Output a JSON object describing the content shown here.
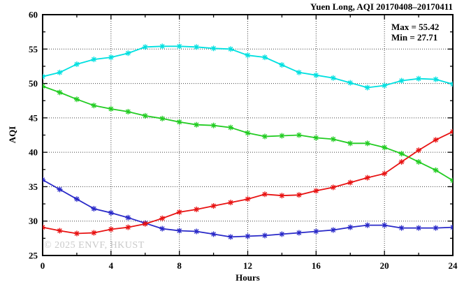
{
  "title": "Yuen Long, AQI 20170408–20170411",
  "legend": {
    "max_label": "Max = 55.42",
    "min_label": "Min = 27.71"
  },
  "watermark": "© 2025 ENVF, HKUST",
  "axes": {
    "x_title": "Hours",
    "y_title": "AQI"
  },
  "colors": {
    "frame": "#000000",
    "grid": "#404040",
    "watermark": "#c9c9c9",
    "series_cyan": "#00e0e0",
    "series_green": "#22cc22",
    "series_blue": "#2929c8",
    "series_red": "#e81212"
  },
  "chart_data": {
    "type": "line",
    "title": "Yuen Long, AQI 20170408–20170411",
    "xlabel": "Hours",
    "ylabel": "AQI",
    "xlim": [
      0,
      24
    ],
    "ylim": [
      25,
      60
    ],
    "xticks_major": [
      0,
      4,
      8,
      12,
      16,
      20,
      24
    ],
    "xticks_minor_step": 2,
    "yticks_major": [
      25,
      30,
      35,
      40,
      45,
      50,
      55,
      60
    ],
    "yticks_minor_step": 2.5,
    "grid": true,
    "grid_x_values": [
      4,
      8,
      12,
      16,
      20
    ],
    "grid_y_values": [
      30,
      35,
      40,
      45,
      50,
      55
    ],
    "legend_position": "top-right",
    "annotations": [
      "Max = 55.42",
      "Min = 27.71"
    ],
    "max": 55.42,
    "min": 27.71,
    "marker": "asterisk",
    "x": [
      0,
      1,
      2,
      3,
      4,
      5,
      6,
      7,
      8,
      9,
      10,
      11,
      12,
      13,
      14,
      15,
      16,
      17,
      18,
      19,
      20,
      21,
      22,
      23,
      24
    ],
    "series": [
      {
        "name": "cyan-line",
        "color": "#00e0e0",
        "values": [
          51.0,
          51.6,
          52.8,
          53.5,
          53.8,
          54.4,
          55.3,
          55.4,
          55.4,
          55.3,
          55.1,
          55.0,
          54.1,
          53.8,
          52.7,
          51.6,
          51.2,
          50.8,
          50.1,
          49.4,
          49.7,
          50.4,
          50.7,
          50.6,
          49.9
        ]
      },
      {
        "name": "green-line",
        "color": "#22cc22",
        "values": [
          49.6,
          48.7,
          47.7,
          46.8,
          46.3,
          45.9,
          45.3,
          44.9,
          44.4,
          44.0,
          43.9,
          43.6,
          42.8,
          42.3,
          42.4,
          42.5,
          42.1,
          41.9,
          41.3,
          41.3,
          40.7,
          39.8,
          38.6,
          37.4,
          35.9
        ]
      },
      {
        "name": "blue-line",
        "color": "#2929c8",
        "values": [
          36.0,
          34.6,
          33.2,
          31.8,
          31.2,
          30.5,
          29.7,
          28.9,
          28.6,
          28.5,
          28.1,
          27.7,
          27.8,
          27.9,
          28.1,
          28.3,
          28.5,
          28.7,
          29.1,
          29.4,
          29.4,
          29.0,
          29.0,
          29.0,
          29.1
        ]
      },
      {
        "name": "red-line",
        "color": "#e81212",
        "values": [
          29.1,
          28.6,
          28.2,
          28.3,
          28.8,
          29.1,
          29.6,
          30.4,
          31.3,
          31.7,
          32.2,
          32.7,
          33.2,
          33.9,
          33.7,
          33.8,
          34.4,
          34.9,
          35.6,
          36.3,
          36.9,
          38.6,
          40.3,
          41.8,
          43.0
        ]
      }
    ]
  }
}
